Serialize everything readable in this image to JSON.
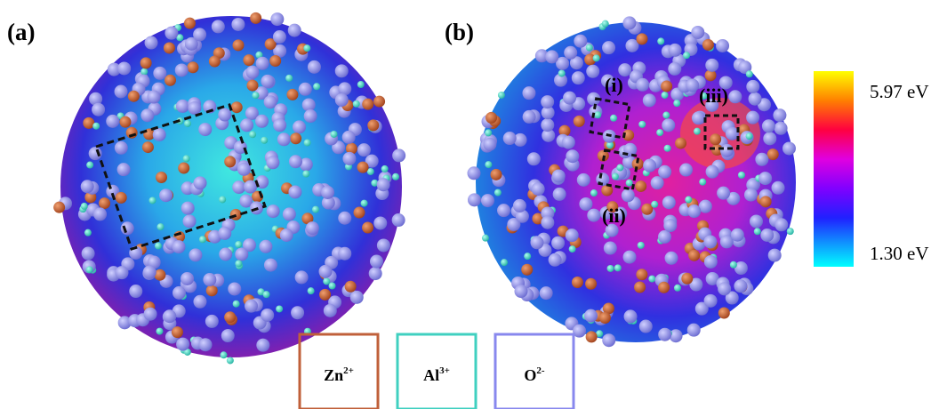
{
  "panels": [
    {
      "label": "(a)"
    },
    {
      "label": "(b)",
      "sites": [
        "(i)",
        "(ii)",
        "(iii)"
      ]
    }
  ],
  "colorbar": {
    "max_label": "5.97 eV",
    "min_label": "1.30 eV"
  },
  "legend": [
    {
      "base": "Zn",
      "sup": "2+"
    },
    {
      "base": "Al",
      "sup": "3+"
    },
    {
      "base": "O",
      "sup": "2-"
    }
  ]
}
